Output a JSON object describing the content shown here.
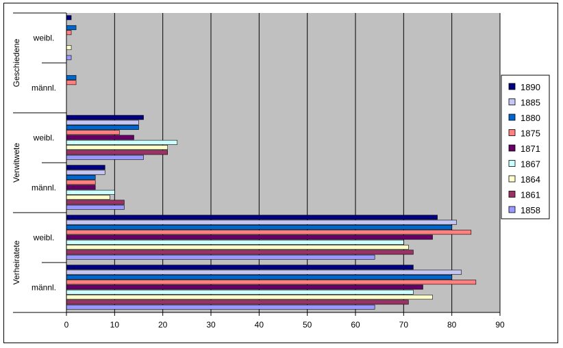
{
  "chart_data": {
    "type": "bar",
    "orientation": "horizontal",
    "title": "",
    "xlabel": "",
    "ylabel": "",
    "xlim": [
      0,
      90
    ],
    "xticks": [
      "0",
      "10",
      "20",
      "30",
      "40",
      "50",
      "60",
      "70",
      "80",
      "90"
    ],
    "grid": true,
    "legend_position": "right",
    "groups": [
      {
        "name": "Geschiedene",
        "subcategories": [
          "weibl.",
          "männl."
        ]
      },
      {
        "name": "Verwitwete",
        "subcategories": [
          "weibl.",
          "männl."
        ]
      },
      {
        "name": "Verheiratete",
        "subcategories": [
          "weibl.",
          "männl."
        ]
      }
    ],
    "series": [
      {
        "name": "1890",
        "color": "#000080",
        "values": [
          1,
          0,
          16,
          8,
          77,
          72
        ]
      },
      {
        "name": "1885",
        "color": "#c6c6f5",
        "values": [
          0,
          0,
          15,
          8,
          81,
          82
        ]
      },
      {
        "name": "1880",
        "color": "#0066cc",
        "values": [
          2,
          2,
          15,
          6,
          80,
          80
        ]
      },
      {
        "name": "1875",
        "color": "#ff8080",
        "values": [
          1,
          2,
          11,
          6,
          84,
          85
        ]
      },
      {
        "name": "1871",
        "color": "#660066",
        "values": [
          0,
          0,
          14,
          6,
          76,
          74
        ]
      },
      {
        "name": "1867",
        "color": "#ccffff",
        "values": [
          0,
          0,
          23,
          10,
          70,
          72
        ]
      },
      {
        "name": "1864",
        "color": "#ffffcc",
        "values": [
          1,
          0,
          21,
          9,
          71,
          76
        ]
      },
      {
        "name": "1861",
        "color": "#993366",
        "values": [
          0,
          0,
          21,
          12,
          72,
          71
        ]
      },
      {
        "name": "1858",
        "color": "#9999ff",
        "values": [
          1,
          0,
          16,
          12,
          64,
          64
        ]
      }
    ]
  },
  "colors": {
    "plot_background": "#c0c0c0",
    "gridline": "#000000",
    "bar_border": "#000000"
  }
}
